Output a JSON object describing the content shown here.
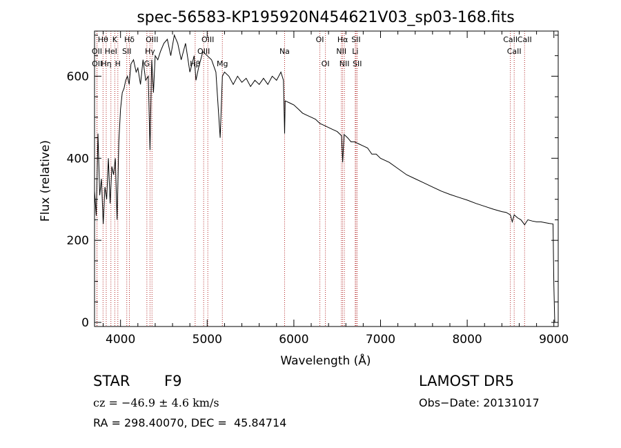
{
  "chart_data": {
    "type": "line",
    "title": "spec-56583-KP195920N454621V03_sp03-168.fits",
    "xlabel": "Wavelength (Å)",
    "ylabel": "Flux (relative)",
    "xlim": [
      3700,
      9050
    ],
    "ylim": [
      -10,
      710
    ],
    "xticks": [
      4000,
      5000,
      6000,
      7000,
      8000,
      9000
    ],
    "yticks": [
      0,
      200,
      400,
      600
    ],
    "xtick_labels": [
      "4000",
      "5000",
      "6000",
      "7000",
      "8000",
      "9000"
    ],
    "ytick_labels": [
      "0",
      "200",
      "400",
      "600"
    ],
    "grid": false,
    "series": [
      {
        "x": [
          3700,
          3720,
          3740,
          3760,
          3780,
          3800,
          3820,
          3840,
          3860,
          3880,
          3900,
          3920,
          3940,
          3960,
          3980,
          4000,
          4020,
          4040,
          4060,
          4080,
          4100,
          4120,
          4150,
          4180,
          4200,
          4230,
          4260,
          4290,
          4320,
          4340,
          4360,
          4380,
          4400,
          4430,
          4460,
          4500,
          4540,
          4580,
          4620,
          4660,
          4700,
          4750,
          4800,
          4850,
          4870,
          4900,
          4950,
          5000,
          5050,
          5100,
          5150,
          5175,
          5200,
          5250,
          5300,
          5350,
          5400,
          5450,
          5500,
          5550,
          5600,
          5650,
          5700,
          5750,
          5800,
          5850,
          5880,
          5893,
          5900,
          5950,
          6000,
          6050,
          6100,
          6150,
          6200,
          6250,
          6300,
          6350,
          6400,
          6450,
          6500,
          6550,
          6563,
          6580,
          6620,
          6660,
          6700,
          6750,
          6800,
          6850,
          6900,
          6950,
          7000,
          7100,
          7200,
          7300,
          7400,
          7500,
          7600,
          7700,
          7800,
          7900,
          8000,
          8100,
          8200,
          8300,
          8400,
          8450,
          8498,
          8520,
          8542,
          8580,
          8620,
          8662,
          8700,
          8750,
          8800,
          8850,
          8900,
          8950,
          8990,
          9000,
          9010
        ],
        "y": [
          320,
          260,
          460,
          310,
          350,
          240,
          330,
          300,
          400,
          290,
          380,
          360,
          400,
          250,
          440,
          520,
          560,
          570,
          590,
          600,
          580,
          630,
          640,
          610,
          620,
          580,
          640,
          590,
          600,
          420,
          640,
          560,
          650,
          640,
          660,
          680,
          690,
          650,
          700,
          680,
          640,
          680,
          610,
          650,
          590,
          620,
          660,
          650,
          640,
          610,
          450,
          600,
          610,
          600,
          580,
          600,
          585,
          595,
          575,
          590,
          580,
          595,
          580,
          600,
          590,
          610,
          590,
          460,
          540,
          535,
          530,
          520,
          510,
          505,
          500,
          495,
          485,
          480,
          475,
          470,
          465,
          455,
          390,
          458,
          450,
          440,
          440,
          435,
          430,
          425,
          410,
          410,
          400,
          390,
          375,
          360,
          350,
          340,
          330,
          320,
          312,
          305,
          298,
          290,
          283,
          276,
          270,
          268,
          262,
          245,
          262,
          255,
          250,
          238,
          250,
          247,
          245,
          245,
          243,
          241,
          240,
          90,
          0
        ]
      }
    ],
    "lines": [
      {
        "name": "Hθ",
        "x": 3798
      },
      {
        "name": "K",
        "x": 3934
      },
      {
        "name": "Hδ",
        "x": 4102
      },
      {
        "name": "OIII",
        "x": 4363
      },
      {
        "name": "OIII",
        "x": 5007
      },
      {
        "name": "OI",
        "x": 6300
      },
      {
        "name": "Hα",
        "x": 6563
      },
      {
        "name": "SII",
        "x": 6717
      },
      {
        "name": "CaII",
        "x": 8498
      },
      {
        "name": "OII",
        "x": 3727
      },
      {
        "name": "HeI",
        "x": 3889
      },
      {
        "name": "SII",
        "x": 4072
      },
      {
        "name": "Hγ",
        "x": 4340
      },
      {
        "name": "OIII",
        "x": 4959
      },
      {
        "name": "Na",
        "x": 5893
      },
      {
        "name": "NII",
        "x": 6548
      },
      {
        "name": "Li",
        "x": 6708
      },
      {
        "name": "CaII",
        "x": 8542
      },
      {
        "name": "OII",
        "x": 3729
      },
      {
        "name": "Hη",
        "x": 3835
      },
      {
        "name": "H",
        "x": 3969
      },
      {
        "name": "G",
        "x": 4304
      },
      {
        "name": "Hβ",
        "x": 4861
      },
      {
        "name": "Mg",
        "x": 5175
      },
      {
        "name": "OI",
        "x": 6364
      },
      {
        "name": "NII",
        "x": 6583
      },
      {
        "name": "SII",
        "x": 6731
      },
      {
        "name": "CaII",
        "x": 8662
      }
    ]
  },
  "info": {
    "object_class": "STAR",
    "subclass": "F9",
    "survey": "LAMOST DR5",
    "cz": "cz = −46.9 ± 4.6 km/s",
    "obs_date": "Obs−Date: 20131017",
    "coords": "RA = 298.40070, DEC =  45.84714"
  },
  "colors": {
    "spectrum": "#000000",
    "line_markers": "#b02020"
  }
}
